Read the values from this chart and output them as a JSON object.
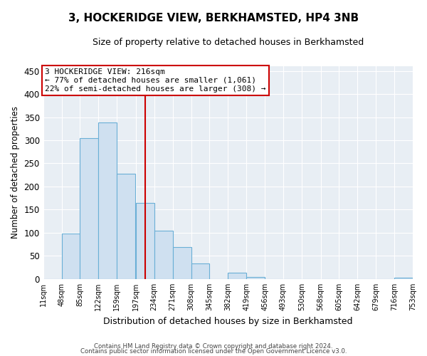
{
  "title": "3, HOCKERIDGE VIEW, BERKHAMSTED, HP4 3NB",
  "subtitle": "Size of property relative to detached houses in Berkhamsted",
  "xlabel": "Distribution of detached houses by size in Berkhamsted",
  "ylabel": "Number of detached properties",
  "footnote1": "Contains HM Land Registry data © Crown copyright and database right 2024.",
  "footnote2": "Contains public sector information licensed under the Open Government Licence v3.0.",
  "bar_edges": [
    11,
    48,
    85,
    122,
    159,
    197,
    234,
    271,
    308,
    345,
    382,
    419,
    456,
    493,
    530,
    568,
    605,
    642,
    679,
    716,
    753
  ],
  "bar_heights": [
    0,
    99,
    305,
    338,
    228,
    165,
    105,
    69,
    34,
    0,
    14,
    5,
    0,
    0,
    0,
    0,
    0,
    0,
    0,
    3
  ],
  "bar_color": "#cfe0f0",
  "bar_edge_color": "#6aafd6",
  "ylim": [
    0,
    460
  ],
  "yticks": [
    0,
    50,
    100,
    150,
    200,
    250,
    300,
    350,
    400,
    450
  ],
  "property_size": 216,
  "vline_color": "#cc0000",
  "annotation_title": "3 HOCKERIDGE VIEW: 216sqm",
  "annotation_line1": "← 77% of detached houses are smaller (1,061)",
  "annotation_line2": "22% of semi-detached houses are larger (308) →",
  "annotation_box_color": "#cc0000",
  "background_color": "#e8eef4",
  "tick_labels": [
    "11sqm",
    "48sqm",
    "85sqm",
    "122sqm",
    "159sqm",
    "197sqm",
    "234sqm",
    "271sqm",
    "308sqm",
    "345sqm",
    "382sqm",
    "419sqm",
    "456sqm",
    "493sqm",
    "530sqm",
    "568sqm",
    "605sqm",
    "642sqm",
    "679sqm",
    "716sqm",
    "753sqm"
  ]
}
